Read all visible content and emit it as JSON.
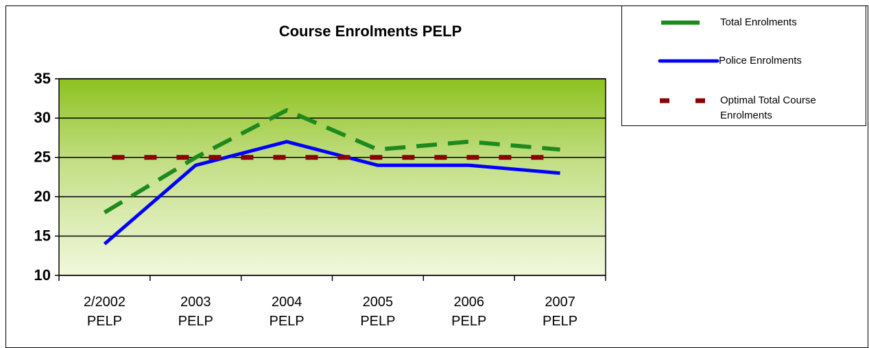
{
  "chart_data": {
    "type": "line",
    "title": "Course Enrolments PELP",
    "categories": [
      "2/2002 PELP",
      "2003 PELP",
      "2004 PELP",
      "2005 PELP",
      "2006 PELP",
      "2007 PELP"
    ],
    "series": [
      {
        "name": "Total Enrolments",
        "color": "#1e8a1e",
        "values": [
          18,
          25,
          31,
          26,
          27,
          26
        ]
      },
      {
        "name": "Police Enrolments",
        "color": "#0000ff",
        "values": [
          14,
          24,
          27,
          24,
          24,
          23
        ]
      },
      {
        "name": "Optimal Total Course Enrolments",
        "color": "#8b0000",
        "values": [
          25,
          25,
          25,
          25,
          25,
          25
        ]
      }
    ],
    "ylim": [
      10,
      35
    ],
    "yticks": [
      10,
      15,
      20,
      25,
      30,
      35
    ],
    "grid": true,
    "legend": "right"
  }
}
